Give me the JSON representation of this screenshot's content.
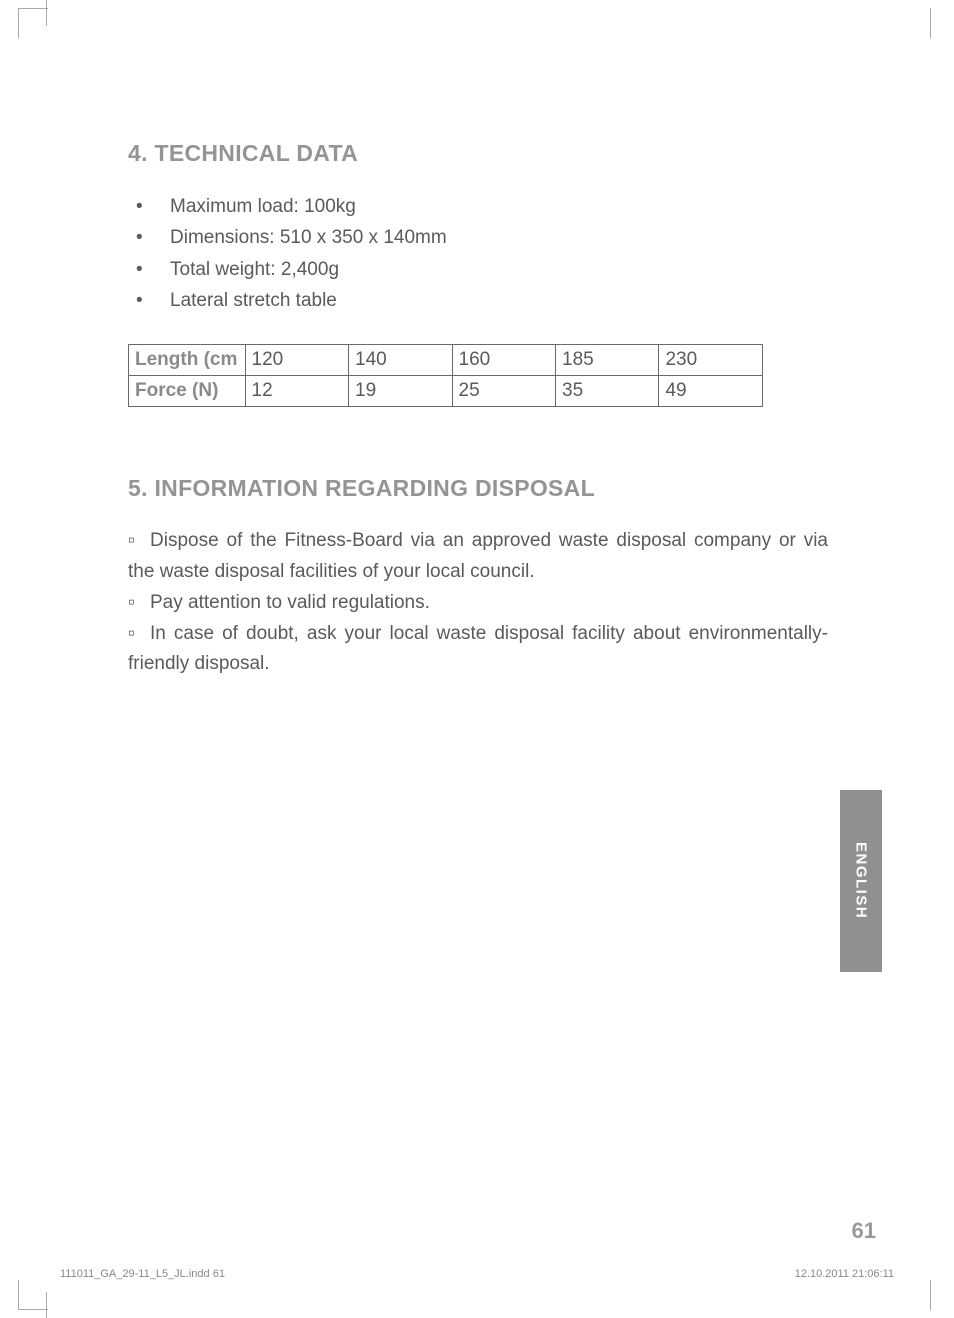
{
  "section4": {
    "heading": "4. TECHNICAL DATA",
    "bullets": [
      "Maximum load: 100kg",
      "Dimensions: 510 x 350 x 140mm",
      "Total weight: 2,400g",
      "Lateral stretch table"
    ],
    "table": {
      "row1_header": "Length (cm",
      "row2_header": "Force (N)",
      "columns": [
        "120",
        "140",
        "160",
        "185",
        "230"
      ],
      "row2": [
        "12",
        "19",
        "25",
        "35",
        "49"
      ]
    }
  },
  "section5": {
    "heading": "5. INFORMATION REGARDING DISPOSAL",
    "items": [
      "Dispose of the Fitness-Board via an approved waste disposal company or via the waste disposal facilities of your local council.",
      "Pay attention to valid regulations.",
      "In case of doubt, ask your local waste disposal facility about environmentally-friendly disposal."
    ]
  },
  "langTab": "ENGLISH",
  "pageNumber": "61",
  "footerLeft": "111011_GA_29-11_L5_JL.indd   61",
  "footerRight": "12.10.2011   21:06:11",
  "colors": {
    "headingGray": "#949494",
    "textGray": "#5a5a5a",
    "tabGray": "#909090",
    "borderGray": "#6a6a6a"
  }
}
